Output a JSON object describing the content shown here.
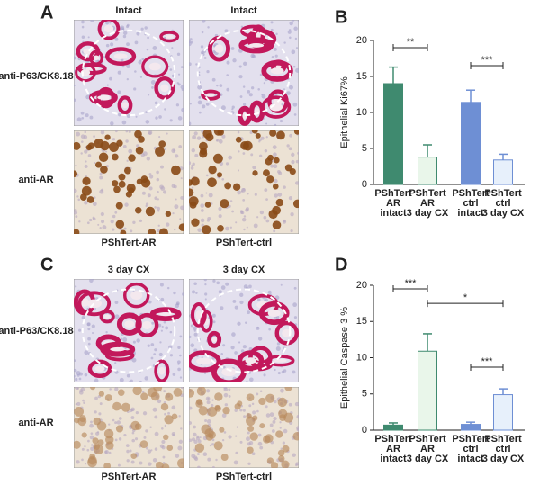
{
  "panels": {
    "A": "A",
    "B": "B",
    "C": "C",
    "D": "D"
  },
  "panel_a": {
    "columns": [
      "Intact",
      "Intact"
    ],
    "rows": [
      "anti-P63/CK8.18",
      "anti-AR"
    ],
    "samples": [
      "PShTert-AR",
      "PShTert-ctrl"
    ]
  },
  "panel_c": {
    "columns": [
      "3 day CX",
      "3 day CX"
    ],
    "rows": [
      "anti-P63/CK8.18",
      "anti-AR"
    ],
    "samples": [
      "PShTert-AR",
      "PShTert-ctrl"
    ]
  },
  "chart_data": [
    {
      "type": "bar",
      "ylabel": "Epithelial Ki67%",
      "categories": [
        [
          "PShTert",
          "AR",
          "intact"
        ],
        [
          "PShTert",
          "AR",
          "3 day CX"
        ],
        [
          "PShTert",
          "ctrl",
          "intact"
        ],
        [
          "PShTert",
          "ctrl",
          "3 day CX"
        ]
      ],
      "values": [
        14,
        3.8,
        11.4,
        3.4
      ],
      "errors": [
        2.3,
        1.7,
        1.7,
        0.8
      ],
      "colors": [
        "#3f8a6f",
        "#e9f6ea",
        "#6e8fd4",
        "#e7f0fb"
      ],
      "ylim": [
        0,
        20
      ],
      "yticks": [
        0,
        5,
        10,
        15,
        20
      ],
      "annotations": [
        {
          "text": "**",
          "from": 0,
          "to": 1,
          "y": 19
        },
        {
          "text": "***",
          "from": 2,
          "to": 3,
          "y": 16.5
        }
      ]
    },
    {
      "type": "bar",
      "ylabel": "Epithelial Caspase 3 %",
      "categories": [
        [
          "PShTert",
          "AR",
          "intact"
        ],
        [
          "PShTert",
          "AR",
          "3 day CX"
        ],
        [
          "PShTert",
          "ctrl",
          "intact"
        ],
        [
          "PShTert",
          "ctrl",
          "3 day CX"
        ]
      ],
      "values": [
        0.7,
        10.9,
        0.8,
        4.9
      ],
      "errors": [
        0.3,
        2.4,
        0.3,
        0.8
      ],
      "colors": [
        "#3f8a6f",
        "#e9f6ea",
        "#6e8fd4",
        "#e7f0fb"
      ],
      "ylim": [
        0,
        20
      ],
      "yticks": [
        0,
        5,
        10,
        15,
        20
      ],
      "annotations": [
        {
          "text": "***",
          "from": 0,
          "to": 1,
          "y": 19.5
        },
        {
          "text": "*",
          "from": 1,
          "to": 3,
          "y": 17.5
        },
        {
          "text": "***",
          "from": 2,
          "to": 3,
          "y": 8.7
        }
      ]
    }
  ]
}
